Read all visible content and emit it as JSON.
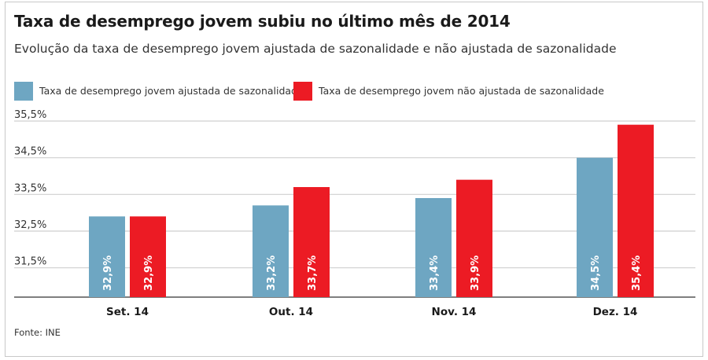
{
  "title": "Taxa de desemprego jovem subiu no último mês de 2014",
  "subtitle": "Evolução da taxa de desemprego jovem ajustada de sazonalidade e não ajustada de sazonalidade",
  "source": "Fonte: INE",
  "colors": {
    "adjusted": "#6ea6c2",
    "not_adjusted": "#ec1b24",
    "grid": "#cfcfcf",
    "axis": "#555555"
  },
  "chart_data": {
    "type": "bar",
    "title": "Taxa de desemprego jovem subiu no último mês de 2014",
    "subtitle": "Evolução da taxa de desemprego jovem ajustada de sazonalidade e não ajustada de sazonalidade",
    "categories": [
      "Set. 14",
      "Out. 14",
      "Nov. 14",
      "Dez. 14"
    ],
    "series": [
      {
        "name": "Taxa de desemprego jovem ajustada de sazonalidade",
        "values": [
          32.9,
          33.2,
          33.4,
          34.5
        ],
        "labels": [
          "32,9%",
          "33,2%",
          "33,4%",
          "34,5%"
        ]
      },
      {
        "name": "Taxa de desemprego jovem não ajustada de sazonalidade",
        "values": [
          32.9,
          33.7,
          33.9,
          35.4
        ],
        "labels": [
          "32,9%",
          "33,7%",
          "33,9%",
          "35,4%"
        ]
      }
    ],
    "yticks": [
      31.5,
      32.5,
      33.5,
      34.5,
      35.5
    ],
    "ytick_labels": [
      "31,5%",
      "32,5%",
      "33,5%",
      "34,5%",
      "35,5%"
    ],
    "ylim": [
      30.7,
      35.5
    ],
    "grid": true,
    "legend_position": "top-left"
  }
}
